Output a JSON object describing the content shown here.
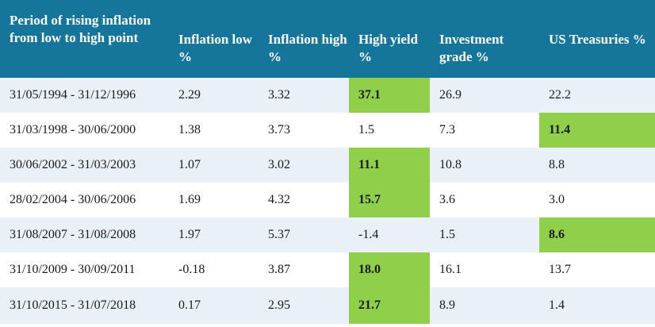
{
  "table": {
    "headers": [
      "Period of rising inflation from low to high point",
      "Inflation low %",
      "Inflation high %",
      "High yield %",
      "Investment grade %",
      "US Treasuries %"
    ],
    "rows": [
      {
        "cells": [
          "31/05/1994 - 31/12/1996",
          "2.29",
          "3.32",
          "37.1",
          "26.9",
          "22.2"
        ],
        "highlight_col": 3
      },
      {
        "cells": [
          "31/03/1998 - 30/06/2000",
          "1.38",
          "3.73",
          "1.5",
          "7.3",
          "11.4"
        ],
        "highlight_col": 5
      },
      {
        "cells": [
          "30/06/2002 - 31/03/2003",
          "1.07",
          "3.02",
          "11.1",
          "10.8",
          "8.8"
        ],
        "highlight_col": 3
      },
      {
        "cells": [
          "28/02/2004 - 30/06/2006",
          "1.69",
          "4.32",
          "15.7",
          "3.6",
          "3.0"
        ],
        "highlight_col": 3
      },
      {
        "cells": [
          "31/08/2007 - 31/08/2008",
          "1.97",
          "5.37",
          "-1.4",
          "1.5",
          "8.6"
        ],
        "highlight_col": 5
      },
      {
        "cells": [
          "31/10/2009 - 30/09/2011",
          "-0.18",
          "3.87",
          "18.0",
          "16.1",
          "13.7"
        ],
        "highlight_col": 3
      },
      {
        "cells": [
          "31/10/2015 - 31/07/2018",
          "0.17",
          "2.95",
          "21.7",
          "8.9",
          "1.4"
        ],
        "highlight_col": 3
      }
    ]
  },
  "colors": {
    "header_bg": "#16759a",
    "header_text": "#ffffff",
    "row_alt_bg": "#e8f1f8",
    "highlight_bg": "#8fcf4a"
  }
}
